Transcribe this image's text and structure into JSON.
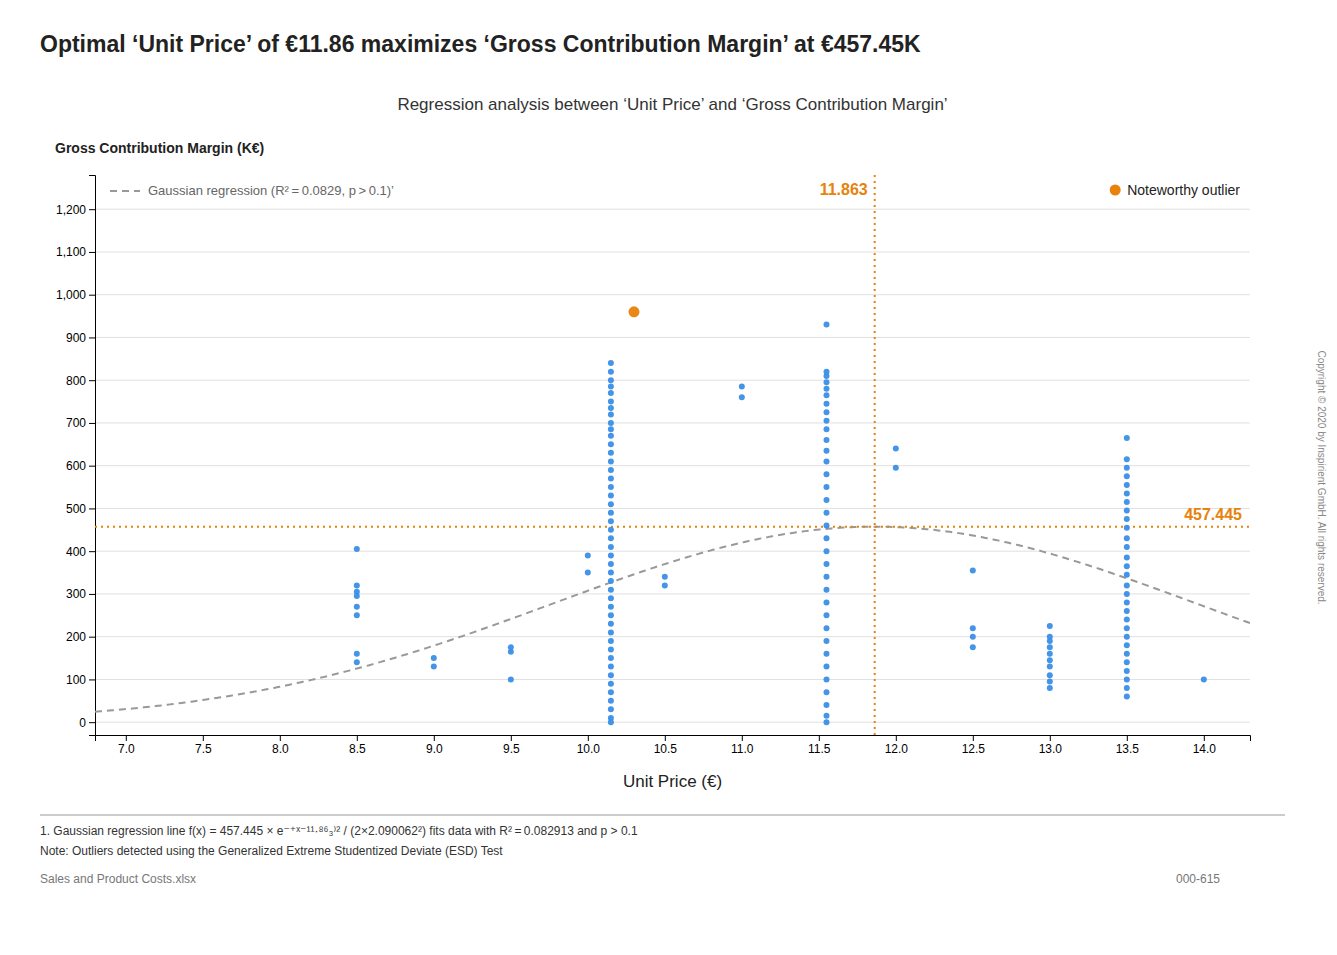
{
  "chart_data": {
    "type": "scatter",
    "title": "Optimal ‘Unit Price’ of €11.86 maximizes ‘Gross Contribution Margin’ at €457.45K",
    "subtitle": "Regression analysis between ‘Unit Price’ and ‘Gross Contribution Margin’",
    "x_label": "Unit Price (€)",
    "y_label": "Gross Contribution Margin (K€)",
    "xlim": [
      6.8,
      14.3
    ],
    "ylim": [
      -30,
      1280
    ],
    "xticks": [
      {
        "value": 7.0,
        "label": "7.0"
      },
      {
        "value": 7.5,
        "label": "7.5"
      },
      {
        "value": 8.0,
        "label": "8.0"
      },
      {
        "value": 8.5,
        "label": "8.5"
      },
      {
        "value": 9.0,
        "label": "9.0"
      },
      {
        "value": 9.5,
        "label": "9.5"
      },
      {
        "value": 10.0,
        "label": "10.0"
      },
      {
        "value": 10.5,
        "label": "10.5"
      },
      {
        "value": 11.0,
        "label": "11.0"
      },
      {
        "value": 11.5,
        "label": "11.5"
      },
      {
        "value": 12.0,
        "label": "12.0"
      },
      {
        "value": 12.5,
        "label": "12.5"
      },
      {
        "value": 13.0,
        "label": "13.0"
      },
      {
        "value": 13.5,
        "label": "13.5"
      },
      {
        "value": 14.0,
        "label": "14.0"
      }
    ],
    "yticks": [
      0,
      100,
      200,
      300,
      400,
      500,
      600,
      700,
      800,
      900,
      {
        "value": 1000,
        "label": "1,000"
      },
      {
        "value": 1100,
        "label": "1,100"
      },
      {
        "value": 1200,
        "label": "1,200"
      }
    ],
    "grid": true,
    "legend": "upper right",
    "series": [
      {
        "color": "#3a8ee6",
        "x": [
          8.5,
          8.5,
          8.5,
          8.5,
          8.5,
          8.5,
          8.5,
          8.5,
          9.0,
          9.0,
          9.5,
          9.5,
          9.5,
          10.0,
          10.0,
          10.15,
          10.15,
          10.15,
          10.15,
          10.15,
          10.15,
          10.15,
          10.15,
          10.15,
          10.15,
          10.15,
          10.15,
          10.15,
          10.15,
          10.15,
          10.15,
          10.15,
          10.15,
          10.15,
          10.15,
          10.15,
          10.15,
          10.15,
          10.15,
          10.15,
          10.15,
          10.15,
          10.15,
          10.15,
          10.15,
          10.15,
          10.15,
          10.15,
          10.15,
          10.15,
          10.15,
          10.15,
          10.15,
          10.15,
          10.15,
          10.15,
          10.15,
          10.15,
          10.15,
          10.15,
          10.5,
          10.5,
          11.0,
          11.0,
          11.55,
          11.55,
          11.55,
          11.55,
          11.55,
          11.55,
          11.55,
          11.55,
          11.55,
          11.55,
          11.55,
          11.55,
          11.55,
          11.55,
          11.55,
          11.55,
          11.55,
          11.55,
          11.55,
          11.55,
          11.55,
          11.55,
          11.55,
          11.55,
          11.55,
          11.55,
          11.55,
          11.55,
          11.55,
          11.55,
          11.55,
          11.55,
          11.55,
          11.55,
          12.0,
          12.0,
          12.5,
          12.5,
          12.5,
          12.5,
          13.0,
          13.0,
          13.0,
          13.0,
          13.0,
          13.0,
          13.0,
          13.0,
          13.0,
          13.0,
          13.5,
          13.5,
          13.5,
          13.5,
          13.5,
          13.5,
          13.5,
          13.5,
          13.5,
          13.5,
          13.5,
          13.5,
          13.5,
          13.5,
          13.5,
          13.5,
          13.5,
          13.5,
          13.5,
          13.5,
          13.5,
          13.5,
          13.5,
          13.5,
          13.5,
          13.5,
          13.5,
          13.5,
          13.5,
          14.0
        ],
        "values": [
          405,
          320,
          305,
          295,
          270,
          250,
          160,
          140,
          150,
          130,
          175,
          165,
          100,
          390,
          350,
          840,
          820,
          800,
          785,
          770,
          750,
          735,
          720,
          700,
          685,
          670,
          650,
          630,
          610,
          590,
          570,
          550,
          530,
          510,
          490,
          470,
          450,
          430,
          410,
          390,
          370,
          350,
          330,
          310,
          290,
          270,
          250,
          230,
          210,
          190,
          170,
          150,
          130,
          110,
          90,
          70,
          50,
          30,
          10,
          0,
          340,
          320,
          785,
          760,
          930,
          820,
          810,
          795,
          780,
          765,
          745,
          725,
          705,
          685,
          660,
          635,
          610,
          580,
          550,
          520,
          490,
          460,
          430,
          400,
          370,
          340,
          310,
          280,
          250,
          220,
          190,
          160,
          130,
          100,
          70,
          40,
          15,
          0,
          640,
          595,
          355,
          220,
          200,
          175,
          225,
          200,
          190,
          175,
          160,
          145,
          130,
          110,
          95,
          80,
          665,
          615,
          595,
          575,
          555,
          535,
          515,
          495,
          475,
          455,
          430,
          410,
          385,
          365,
          345,
          320,
          300,
          280,
          260,
          240,
          220,
          200,
          180,
          160,
          140,
          120,
          100,
          80,
          60,
          100
        ]
      },
      {
        "name": "Noteworthy outlier",
        "color": "#e8820a",
        "x": [
          10.3
        ],
        "values": [
          960
        ]
      }
    ],
    "fit": {
      "label": "Gaussian regression (R² = 0.0829, p > 0.1)’",
      "amplitude": 457.445,
      "center": 11.863,
      "sigma": 2.090062,
      "color": "#999999",
      "line_style": "dashed"
    },
    "reference_lines": {
      "x": 11.863,
      "y": 457.445,
      "color": "#e8820a",
      "line_style": "dotted"
    },
    "footnotes": [
      "1. Gaussian regression line f(x) = 457.445 × e⁻⁺ˣ⁻¹¹·⁸⁶₃⁾² / (2×2.090062²) fits data with R² = 0.082913 and p > 0.1",
      "Note: Outliers detected using the Generalized Extreme Studentized Deviate (ESD) Test",
      "Sales and Product Costs.xlsx",
      "000-615"
    ],
    "copyright": "Copyright © 2020 by Inspirient GmbH. All rights reserved."
  }
}
